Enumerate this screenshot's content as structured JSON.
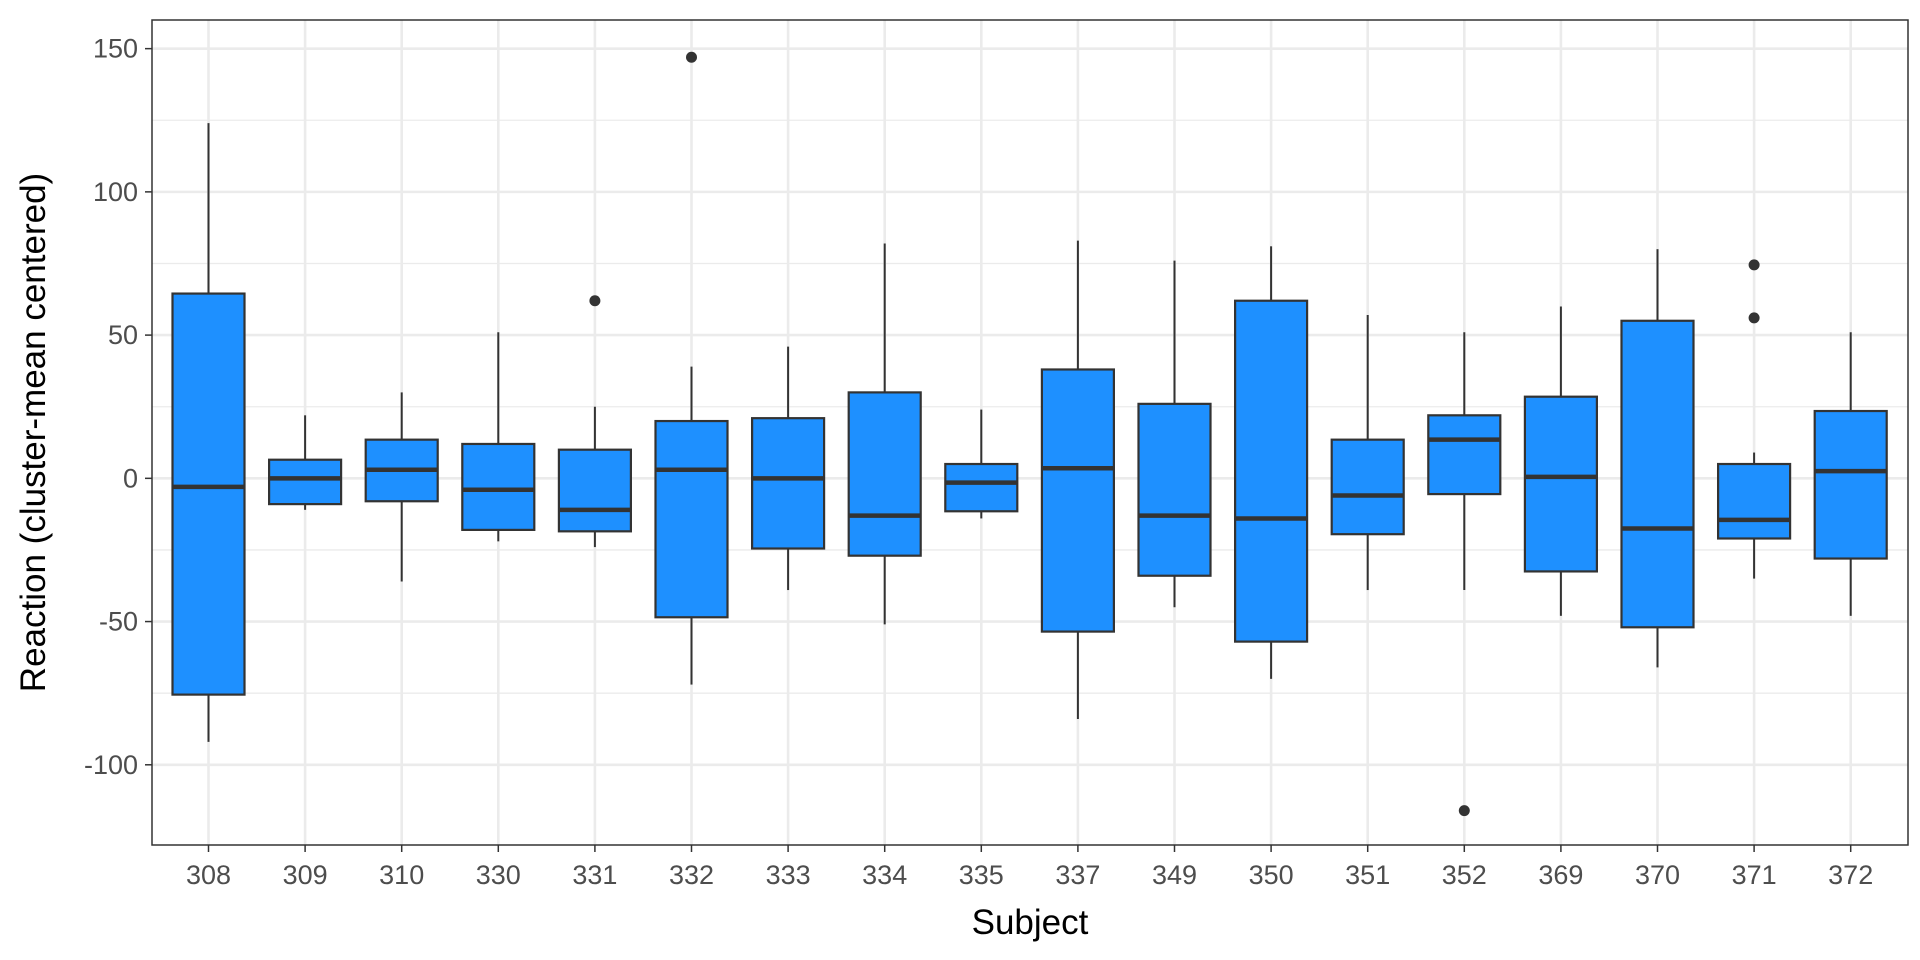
{
  "chart_data": {
    "type": "boxplot",
    "xlabel": "Subject",
    "ylabel": "Reaction (cluster-mean centered)",
    "ylim": [
      -128,
      160
    ],
    "yticks": [
      150,
      100,
      50,
      0,
      -50,
      -100
    ],
    "grid": true,
    "theme": "bw",
    "box_color": "#1E90FF",
    "line_color": "#333333",
    "categories": [
      "308",
      "309",
      "310",
      "330",
      "331",
      "332",
      "333",
      "334",
      "335",
      "337",
      "349",
      "350",
      "351",
      "352",
      "369",
      "370",
      "371",
      "372"
    ],
    "boxes": [
      {
        "subject": "308",
        "whisker_low": -92,
        "q1": -75.5,
        "median": -3,
        "q3": 64.5,
        "whisker_high": 124,
        "outliers": []
      },
      {
        "subject": "309",
        "whisker_low": -11,
        "q1": -9,
        "median": 0,
        "q3": 6.5,
        "whisker_high": 22,
        "outliers": []
      },
      {
        "subject": "310",
        "whisker_low": -36,
        "q1": -8,
        "median": 3,
        "q3": 13.5,
        "whisker_high": 30,
        "outliers": []
      },
      {
        "subject": "330",
        "whisker_low": -22,
        "q1": -18,
        "median": -4,
        "q3": 12,
        "whisker_high": 51,
        "outliers": []
      },
      {
        "subject": "331",
        "whisker_low": -24,
        "q1": -18.5,
        "median": -11,
        "q3": 10,
        "whisker_high": 25,
        "outliers": [
          62
        ]
      },
      {
        "subject": "332",
        "whisker_low": -72,
        "q1": -48.5,
        "median": 3,
        "q3": 20,
        "whisker_high": 39,
        "outliers": [
          147
        ]
      },
      {
        "subject": "333",
        "whisker_low": -39,
        "q1": -24.5,
        "median": 0,
        "q3": 21,
        "whisker_high": 46,
        "outliers": []
      },
      {
        "subject": "334",
        "whisker_low": -51,
        "q1": -27,
        "median": -13,
        "q3": 30,
        "whisker_high": 82,
        "outliers": []
      },
      {
        "subject": "335",
        "whisker_low": -14,
        "q1": -11.5,
        "median": -1.5,
        "q3": 5,
        "whisker_high": 24,
        "outliers": []
      },
      {
        "subject": "337",
        "whisker_low": -84,
        "q1": -53.5,
        "median": 3.5,
        "q3": 38,
        "whisker_high": 83,
        "outliers": []
      },
      {
        "subject": "349",
        "whisker_low": -45,
        "q1": -34,
        "median": -13,
        "q3": 26,
        "whisker_high": 76,
        "outliers": []
      },
      {
        "subject": "350",
        "whisker_low": -70,
        "q1": -57,
        "median": -14,
        "q3": 62,
        "whisker_high": 81,
        "outliers": []
      },
      {
        "subject": "351",
        "whisker_low": -39,
        "q1": -19.5,
        "median": -6,
        "q3": 13.5,
        "whisker_high": 57,
        "outliers": []
      },
      {
        "subject": "352",
        "whisker_low": -39,
        "q1": -5.5,
        "median": 13.5,
        "q3": 22,
        "whisker_high": 51,
        "outliers": [
          -116
        ]
      },
      {
        "subject": "369",
        "whisker_low": -48,
        "q1": -32.5,
        "median": 0.5,
        "q3": 28.5,
        "whisker_high": 60,
        "outliers": []
      },
      {
        "subject": "370",
        "whisker_low": -66,
        "q1": -52,
        "median": -17.5,
        "q3": 55,
        "whisker_high": 80,
        "outliers": []
      },
      {
        "subject": "371",
        "whisker_low": -35,
        "q1": -21,
        "median": -14.5,
        "q3": 5,
        "whisker_high": 9,
        "outliers": [
          56,
          74.5
        ]
      },
      {
        "subject": "372",
        "whisker_low": -48,
        "q1": -28,
        "median": 2.5,
        "q3": 23.5,
        "whisker_high": 51,
        "outliers": []
      }
    ]
  }
}
